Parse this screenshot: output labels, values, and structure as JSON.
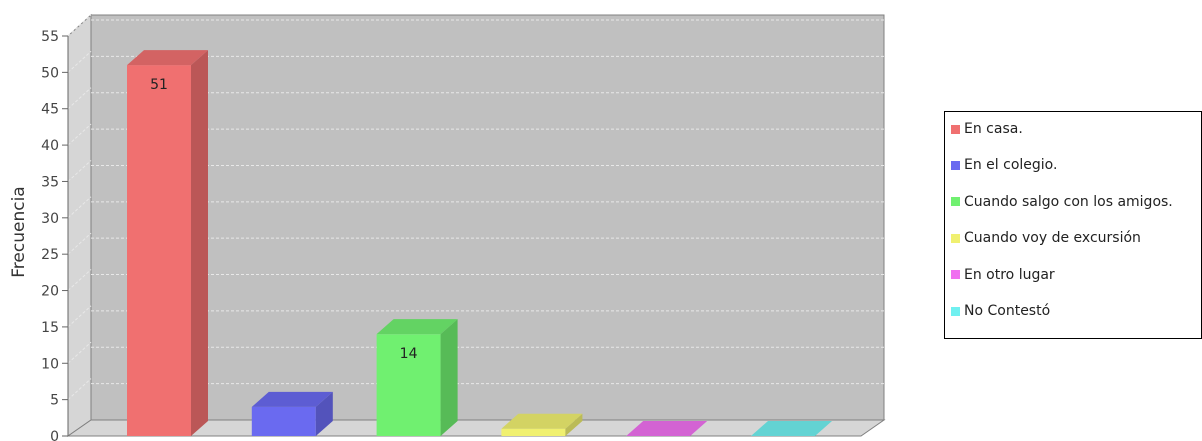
{
  "chart_data": {
    "type": "bar",
    "style": "3d",
    "ylabel": "Frecuencia",
    "ylim": [
      0,
      55
    ],
    "yticks": [
      0,
      5,
      10,
      15,
      20,
      25,
      30,
      35,
      40,
      45,
      50,
      55
    ],
    "grid": true,
    "legend_position": "right",
    "categories": [
      "En casa.",
      "En el colegio.",
      "Cuando salgo con los amigos.",
      "Cuando voy de excursión",
      "En otro lugar",
      "No Contestó"
    ],
    "values": [
      51,
      4,
      14,
      1,
      0,
      0
    ],
    "data_labels": [
      "51",
      "",
      "14",
      "",
      "",
      ""
    ],
    "colors": [
      "#f07070",
      "#6a6af0",
      "#70f070",
      "#f0f070",
      "#f070f0",
      "#70f0f0"
    ],
    "plot_background": "#c0c0c0"
  }
}
